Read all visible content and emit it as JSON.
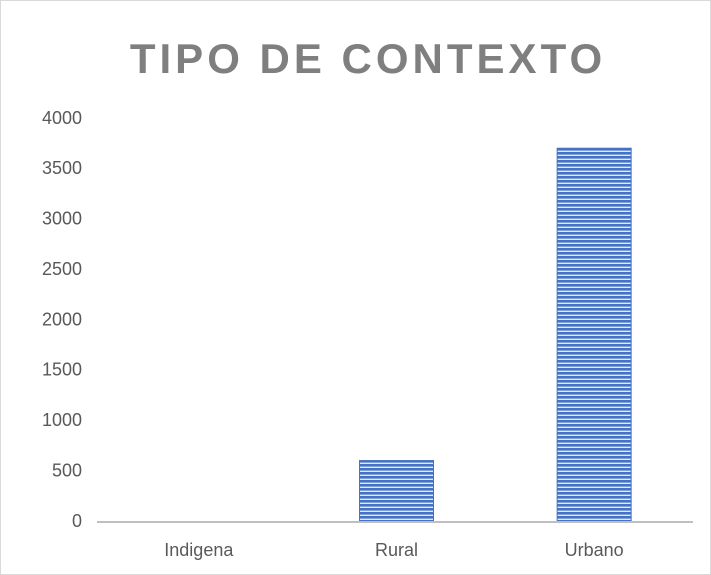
{
  "chart_data": {
    "type": "bar",
    "title": "TIPO DE CONTEXTO",
    "categories": [
      "Indigena",
      "Rural",
      "Urbano"
    ],
    "values": [
      0,
      610,
      3710
    ],
    "color": "#4472c4",
    "ylim": [
      0,
      4000
    ],
    "yticks": [
      0,
      500,
      1000,
      1500,
      2000,
      2500,
      3000,
      3500,
      4000
    ],
    "grid": false
  }
}
